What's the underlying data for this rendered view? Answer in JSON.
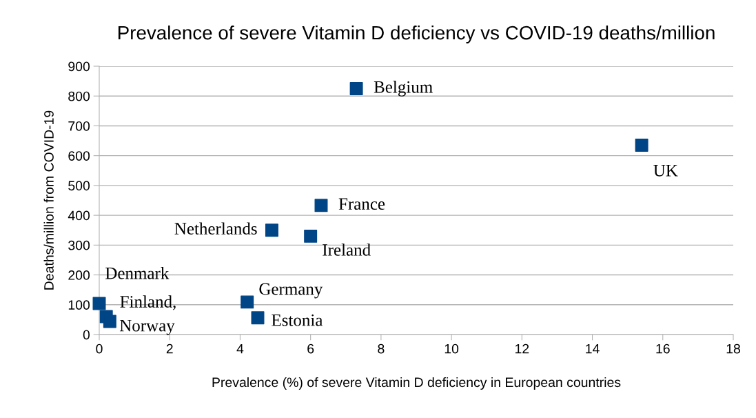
{
  "chart_data": {
    "type": "scatter",
    "title": "Prevalence of severe Vitamin D deficiency vs COVID-19 deaths/million",
    "xlabel": "Prevalence (%) of severe Vitamin D deficiency in European countries",
    "ylabel": "Deaths/million from COVID-19",
    "x": [
      7.3,
      15.4,
      6.3,
      4.9,
      6.0,
      4.2,
      4.5,
      0,
      0.2,
      0.3
    ],
    "values": [
      825,
      635,
      433,
      350,
      330,
      109,
      56,
      104,
      60,
      44
    ],
    "color": "#004586",
    "marker": "square",
    "annotations": [
      {
        "text": "Belgium",
        "x": 7.3,
        "y": 825
      },
      {
        "text": "UK",
        "x": 15.4,
        "y": 635
      },
      {
        "text": "France",
        "x": 6.3,
        "y": 433
      },
      {
        "text": "Netherlands",
        "x": 4.9,
        "y": 350
      },
      {
        "text": "Ireland",
        "x": 6.0,
        "y": 330
      },
      {
        "text": "Germany",
        "x": 4.2,
        "y": 109
      },
      {
        "text": "Estonia",
        "x": 4.5,
        "y": 56
      },
      {
        "text": "Denmark",
        "x": 0,
        "y": 104
      },
      {
        "text": "Finland,",
        "x": 0.2,
        "y": 60
      },
      {
        "text": "Norway",
        "x": 0.3,
        "y": 44
      }
    ],
    "xlim": [
      0,
      18
    ],
    "xticks": [
      0,
      2,
      4,
      6,
      8,
      10,
      12,
      14,
      16,
      18
    ],
    "ylim": [
      0,
      900
    ],
    "yticks": [
      0,
      100,
      200,
      300,
      400,
      500,
      600,
      700,
      800,
      900
    ],
    "grid": "y",
    "legend": false
  }
}
